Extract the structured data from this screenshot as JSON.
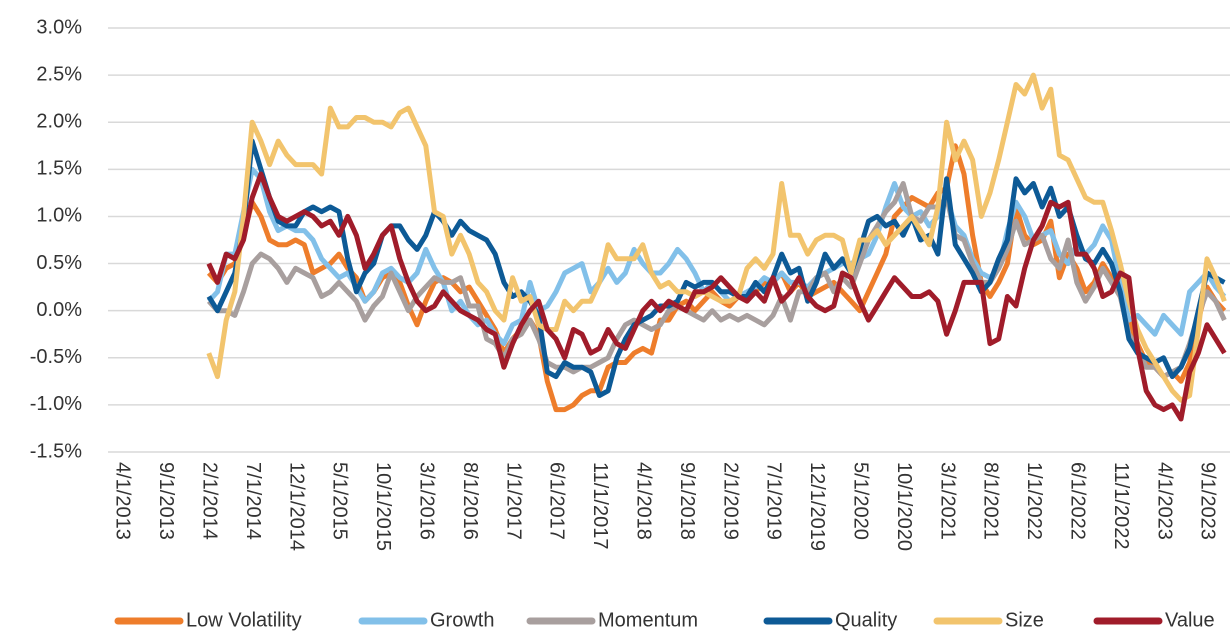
{
  "chart_data": {
    "type": "line",
    "categories": [
      "4/1/2013",
      null,
      null,
      null,
      null,
      "9/1/2013",
      null,
      null,
      null,
      null,
      "2/1/2014",
      null,
      null,
      null,
      null,
      "7/1/2014",
      null,
      null,
      null,
      null,
      "12/1/2014",
      null,
      null,
      null,
      null,
      "5/1/2015",
      null,
      null,
      null,
      null,
      "10/1/2015",
      null,
      null,
      null,
      null,
      "3/1/2016",
      null,
      null,
      null,
      null,
      "8/1/2016",
      null,
      null,
      null,
      null,
      "1/1/2017",
      null,
      null,
      null,
      null,
      "6/1/2017",
      null,
      null,
      null,
      null,
      "11/1/2017",
      null,
      null,
      null,
      null,
      "4/1/2018",
      null,
      null,
      null,
      null,
      "9/1/2018",
      null,
      null,
      null,
      null,
      "2/1/2019",
      null,
      null,
      null,
      null,
      "7/1/2019",
      null,
      null,
      null,
      null,
      "12/1/2019",
      null,
      null,
      null,
      null,
      "5/1/2020",
      null,
      null,
      null,
      null,
      "10/1/2020",
      null,
      null,
      null,
      null,
      "3/1/2021",
      null,
      null,
      null,
      null,
      "8/1/2021",
      null,
      null,
      null,
      null,
      "1/1/2022",
      null,
      null,
      null,
      null,
      "6/1/2022",
      null,
      null,
      null,
      null,
      "11/1/2022",
      null,
      null,
      null,
      null,
      "4/1/2023",
      null,
      null,
      null,
      null,
      "9/1/2023",
      null,
      null
    ],
    "ylim": [
      -1.5,
      3.0
    ],
    "yticks": [
      {
        "value": -1.5,
        "label": "-1.5%"
      },
      {
        "value": -1.0,
        "label": "-1.0%"
      },
      {
        "value": -0.5,
        "label": "-0.5%"
      },
      {
        "value": 0,
        "label": "0.0%"
      },
      {
        "value": 0.5,
        "label": "0.5%"
      },
      {
        "value": 1.0,
        "label": "1.0%"
      },
      {
        "value": 1.5,
        "label": "1.5%"
      },
      {
        "value": 2.0,
        "label": "2.0%"
      },
      {
        "value": 2.5,
        "label": "2.5%"
      },
      {
        "value": 3.0,
        "label": "3.0%"
      }
    ],
    "grid": true,
    "legend": "bottom",
    "series": [
      {
        "name": "Low Volatility",
        "color": "#ee7d2b",
        "values": [
          null,
          null,
          null,
          null,
          null,
          null,
          null,
          null,
          null,
          null,
          0.4,
          0.3,
          0.45,
          0.5,
          0.8,
          1.15,
          1.0,
          0.75,
          0.7,
          0.7,
          0.75,
          0.7,
          0.4,
          0.45,
          0.5,
          0.6,
          0.45,
          0.35,
          0.1,
          0.2,
          0.35,
          0.4,
          0.3,
          0.05,
          -0.15,
          0.1,
          0.3,
          0.35,
          0.3,
          0.2,
          0.25,
          0.1,
          -0.05,
          -0.2,
          -0.45,
          -0.3,
          -0.2,
          -0.1,
          -0.25,
          -0.75,
          -1.05,
          -1.05,
          -1.0,
          -0.9,
          -0.85,
          -0.85,
          -0.6,
          -0.55,
          -0.55,
          -0.45,
          -0.4,
          -0.45,
          -0.1,
          -0.1,
          0.05,
          0.1,
          0.0,
          0.1,
          0.2,
          0.1,
          0.05,
          0.15,
          0.15,
          0.2,
          0.3,
          0.3,
          0.4,
          0.2,
          0.3,
          0.15,
          0.2,
          0.25,
          0.3,
          0.2,
          0.1,
          0.0,
          0.2,
          0.4,
          0.6,
          1.0,
          1.1,
          1.2,
          1.15,
          1.1,
          1.25,
          1.3,
          1.75,
          1.45,
          0.8,
          0.3,
          0.15,
          0.3,
          0.5,
          1.1,
          0.8,
          0.7,
          0.75,
          0.95,
          0.35,
          0.6,
          0.45,
          0.2,
          0.3,
          0.5,
          0.35,
          0.15,
          -0.1,
          -0.35,
          -0.55,
          -0.6,
          -0.7,
          -0.65,
          -0.75,
          -0.55,
          -0.1,
          0.25,
          0.1,
          0.0
        ]
      },
      {
        "name": "Growth",
        "color": "#82c0e9",
        "values": [
          null,
          null,
          null,
          null,
          null,
          null,
          null,
          null,
          null,
          null,
          0.1,
          0.2,
          0.6,
          0.6,
          1.05,
          1.5,
          1.4,
          1.05,
          0.85,
          0.9,
          0.85,
          0.85,
          0.75,
          0.55,
          0.45,
          0.35,
          0.4,
          0.25,
          0.1,
          0.2,
          0.4,
          0.45,
          0.35,
          0.3,
          0.4,
          0.65,
          0.45,
          0.3,
          0.0,
          0.1,
          -0.05,
          -0.15,
          -0.1,
          -0.25,
          -0.35,
          -0.15,
          -0.1,
          0.3,
          0.0,
          0.05,
          0.2,
          0.4,
          0.45,
          0.5,
          0.2,
          0.3,
          0.45,
          0.3,
          0.4,
          0.65,
          0.5,
          0.4,
          0.4,
          0.5,
          0.65,
          0.55,
          0.4,
          0.2,
          0.3,
          0.2,
          0.1,
          0.15,
          0.2,
          0.25,
          0.35,
          0.3,
          0.4,
          0.3,
          0.3,
          0.25,
          0.35,
          0.4,
          0.45,
          0.5,
          0.5,
          0.55,
          0.6,
          0.8,
          1.1,
          1.35,
          1.1,
          1.0,
          1.05,
          0.9,
          1.0,
          1.2,
          0.9,
          0.8,
          0.55,
          0.4,
          0.35,
          0.45,
          0.85,
          1.15,
          1.0,
          0.75,
          0.8,
          0.85,
          0.6,
          0.5,
          0.7,
          0.6,
          0.7,
          0.9,
          0.75,
          0.3,
          -0.1,
          -0.05,
          -0.15,
          -0.25,
          -0.05,
          -0.15,
          -0.25,
          0.2,
          0.3,
          0.4,
          0.25,
          0.15
        ]
      },
      {
        "name": "Momentum",
        "color": "#a89f9e",
        "values": [
          null,
          null,
          null,
          null,
          null,
          null,
          null,
          null,
          null,
          null,
          0.1,
          0.0,
          0.0,
          -0.05,
          0.2,
          0.5,
          0.6,
          0.55,
          0.45,
          0.3,
          0.45,
          0.4,
          0.35,
          0.15,
          0.2,
          0.3,
          0.2,
          0.1,
          -0.1,
          0.05,
          0.15,
          0.4,
          0.2,
          0.0,
          0.15,
          0.25,
          0.35,
          0.3,
          0.3,
          0.35,
          0.05,
          0.05,
          -0.3,
          -0.35,
          -0.5,
          -0.3,
          -0.25,
          -0.1,
          -0.3,
          -0.55,
          -0.6,
          -0.6,
          -0.65,
          -0.6,
          -0.6,
          -0.55,
          -0.5,
          -0.3,
          -0.15,
          -0.1,
          -0.15,
          -0.2,
          -0.15,
          0.0,
          0.05,
          0.0,
          -0.05,
          -0.1,
          0.0,
          -0.1,
          -0.05,
          -0.1,
          -0.05,
          -0.1,
          -0.15,
          -0.05,
          0.15,
          -0.1,
          0.2,
          0.2,
          0.35,
          0.4,
          0.2,
          0.35,
          0.25,
          0.5,
          0.75,
          0.9,
          1.05,
          1.15,
          1.35,
          1.0,
          0.95,
          1.1,
          1.1,
          1.2,
          0.8,
          0.75,
          0.5,
          0.3,
          0.3,
          0.45,
          0.65,
          0.95,
          0.7,
          0.75,
          0.8,
          0.55,
          0.45,
          0.75,
          0.3,
          0.1,
          0.25,
          0.45,
          0.3,
          0.15,
          -0.25,
          -0.4,
          -0.6,
          -0.6,
          -0.7,
          -0.65,
          -0.6,
          -0.35,
          -0.05,
          0.2,
          0.1,
          -0.1
        ]
      },
      {
        "name": "Quality",
        "color": "#0d5a96",
        "values": [
          null,
          null,
          null,
          null,
          null,
          null,
          null,
          null,
          null,
          null,
          0.15,
          0.0,
          0.2,
          0.4,
          0.9,
          1.8,
          1.5,
          1.2,
          0.95,
          0.9,
          0.9,
          1.05,
          1.1,
          1.05,
          1.1,
          1.05,
          0.55,
          0.2,
          0.4,
          0.5,
          0.8,
          0.9,
          0.9,
          0.75,
          0.65,
          0.8,
          1.05,
          0.95,
          0.8,
          0.95,
          0.85,
          0.8,
          0.75,
          0.6,
          0.3,
          0.15,
          0.2,
          0.1,
          -0.05,
          -0.65,
          -0.7,
          -0.55,
          -0.6,
          -0.6,
          -0.65,
          -0.9,
          -0.85,
          -0.5,
          -0.3,
          -0.15,
          -0.1,
          -0.05,
          0.05,
          0.05,
          0.1,
          0.3,
          0.25,
          0.3,
          0.3,
          0.2,
          0.2,
          0.15,
          0.15,
          0.3,
          0.2,
          0.35,
          0.6,
          0.4,
          0.45,
          0.1,
          0.3,
          0.6,
          0.45,
          0.55,
          0.4,
          0.65,
          0.95,
          1.0,
          0.9,
          0.95,
          0.8,
          1.0,
          0.75,
          0.8,
          0.6,
          1.4,
          0.7,
          0.55,
          0.4,
          0.2,
          0.3,
          0.55,
          0.75,
          1.4,
          1.25,
          1.35,
          1.1,
          1.3,
          1.0,
          1.1,
          0.8,
          0.55,
          0.5,
          0.65,
          0.5,
          0.2,
          -0.3,
          -0.45,
          -0.5,
          -0.55,
          -0.5,
          -0.7,
          -0.6,
          -0.4,
          0.0,
          0.4,
          0.35,
          0.3
        ]
      },
      {
        "name": "Size",
        "color": "#f2c46d",
        "values": [
          null,
          null,
          null,
          null,
          null,
          null,
          null,
          null,
          null,
          null,
          -0.45,
          -0.7,
          -0.1,
          0.2,
          1.0,
          2.0,
          1.8,
          1.55,
          1.8,
          1.65,
          1.55,
          1.55,
          1.55,
          1.45,
          2.15,
          1.95,
          1.95,
          2.05,
          2.05,
          2.0,
          2.0,
          1.95,
          2.1,
          2.15,
          1.95,
          1.75,
          1.05,
          1.0,
          0.6,
          0.8,
          0.6,
          0.3,
          0.2,
          0.0,
          -0.1,
          0.35,
          0.1,
          0.15,
          -0.15,
          -0.2,
          -0.2,
          0.1,
          0.0,
          0.1,
          0.1,
          0.3,
          0.7,
          0.55,
          0.55,
          0.55,
          0.7,
          0.4,
          0.25,
          0.3,
          0.2,
          0.2,
          0.15,
          0.2,
          0.15,
          0.1,
          0.1,
          0.15,
          0.45,
          0.55,
          0.45,
          0.6,
          1.35,
          0.8,
          0.8,
          0.6,
          0.75,
          0.8,
          0.8,
          0.75,
          0.4,
          0.75,
          0.75,
          0.85,
          0.7,
          0.8,
          0.9,
          1.0,
          0.85,
          0.7,
          1.1,
          2.0,
          1.6,
          1.8,
          1.6,
          1.0,
          1.25,
          1.6,
          2.0,
          2.4,
          2.3,
          2.5,
          2.15,
          2.35,
          1.65,
          1.6,
          1.4,
          1.2,
          1.15,
          1.15,
          0.85,
          0.5,
          0.1,
          -0.2,
          -0.4,
          -0.55,
          -0.7,
          -0.85,
          -0.95,
          -0.9,
          -0.2,
          0.55,
          0.35,
          0.1
        ]
      },
      {
        "name": "Value",
        "color": "#a01c2a",
        "values": [
          null,
          null,
          null,
          null,
          null,
          null,
          null,
          null,
          null,
          null,
          0.5,
          0.3,
          0.6,
          0.55,
          0.75,
          1.2,
          1.45,
          1.2,
          1.0,
          0.95,
          1.0,
          1.05,
          1.0,
          0.9,
          0.95,
          0.8,
          1.0,
          0.8,
          0.45,
          0.6,
          0.8,
          0.9,
          0.55,
          0.3,
          0.1,
          0.0,
          0.05,
          0.2,
          0.1,
          0.0,
          -0.05,
          -0.1,
          -0.2,
          -0.25,
          -0.6,
          -0.35,
          -0.15,
          0.0,
          0.1,
          -0.2,
          -0.3,
          -0.5,
          -0.2,
          -0.25,
          -0.45,
          -0.4,
          -0.2,
          -0.35,
          -0.4,
          -0.2,
          0.0,
          0.1,
          0.0,
          0.1,
          0.05,
          0.0,
          0.2,
          0.2,
          0.25,
          0.35,
          0.25,
          0.15,
          0.1,
          0.2,
          0.1,
          0.35,
          0.1,
          0.2,
          0.35,
          0.15,
          0.05,
          0.0,
          0.05,
          0.4,
          0.35,
          0.1,
          -0.1,
          0.05,
          0.2,
          0.35,
          0.25,
          0.15,
          0.15,
          0.2,
          0.1,
          -0.25,
          0.0,
          0.3,
          0.3,
          0.3,
          -0.35,
          -0.3,
          0.15,
          0.05,
          0.45,
          0.75,
          0.9,
          1.15,
          1.1,
          1.15,
          0.6,
          0.6,
          0.45,
          0.15,
          0.2,
          0.4,
          0.35,
          -0.4,
          -0.85,
          -1.0,
          -1.05,
          -1.0,
          -1.15,
          -0.65,
          -0.45,
          -0.15,
          -0.3,
          -0.45
        ]
      }
    ]
  }
}
